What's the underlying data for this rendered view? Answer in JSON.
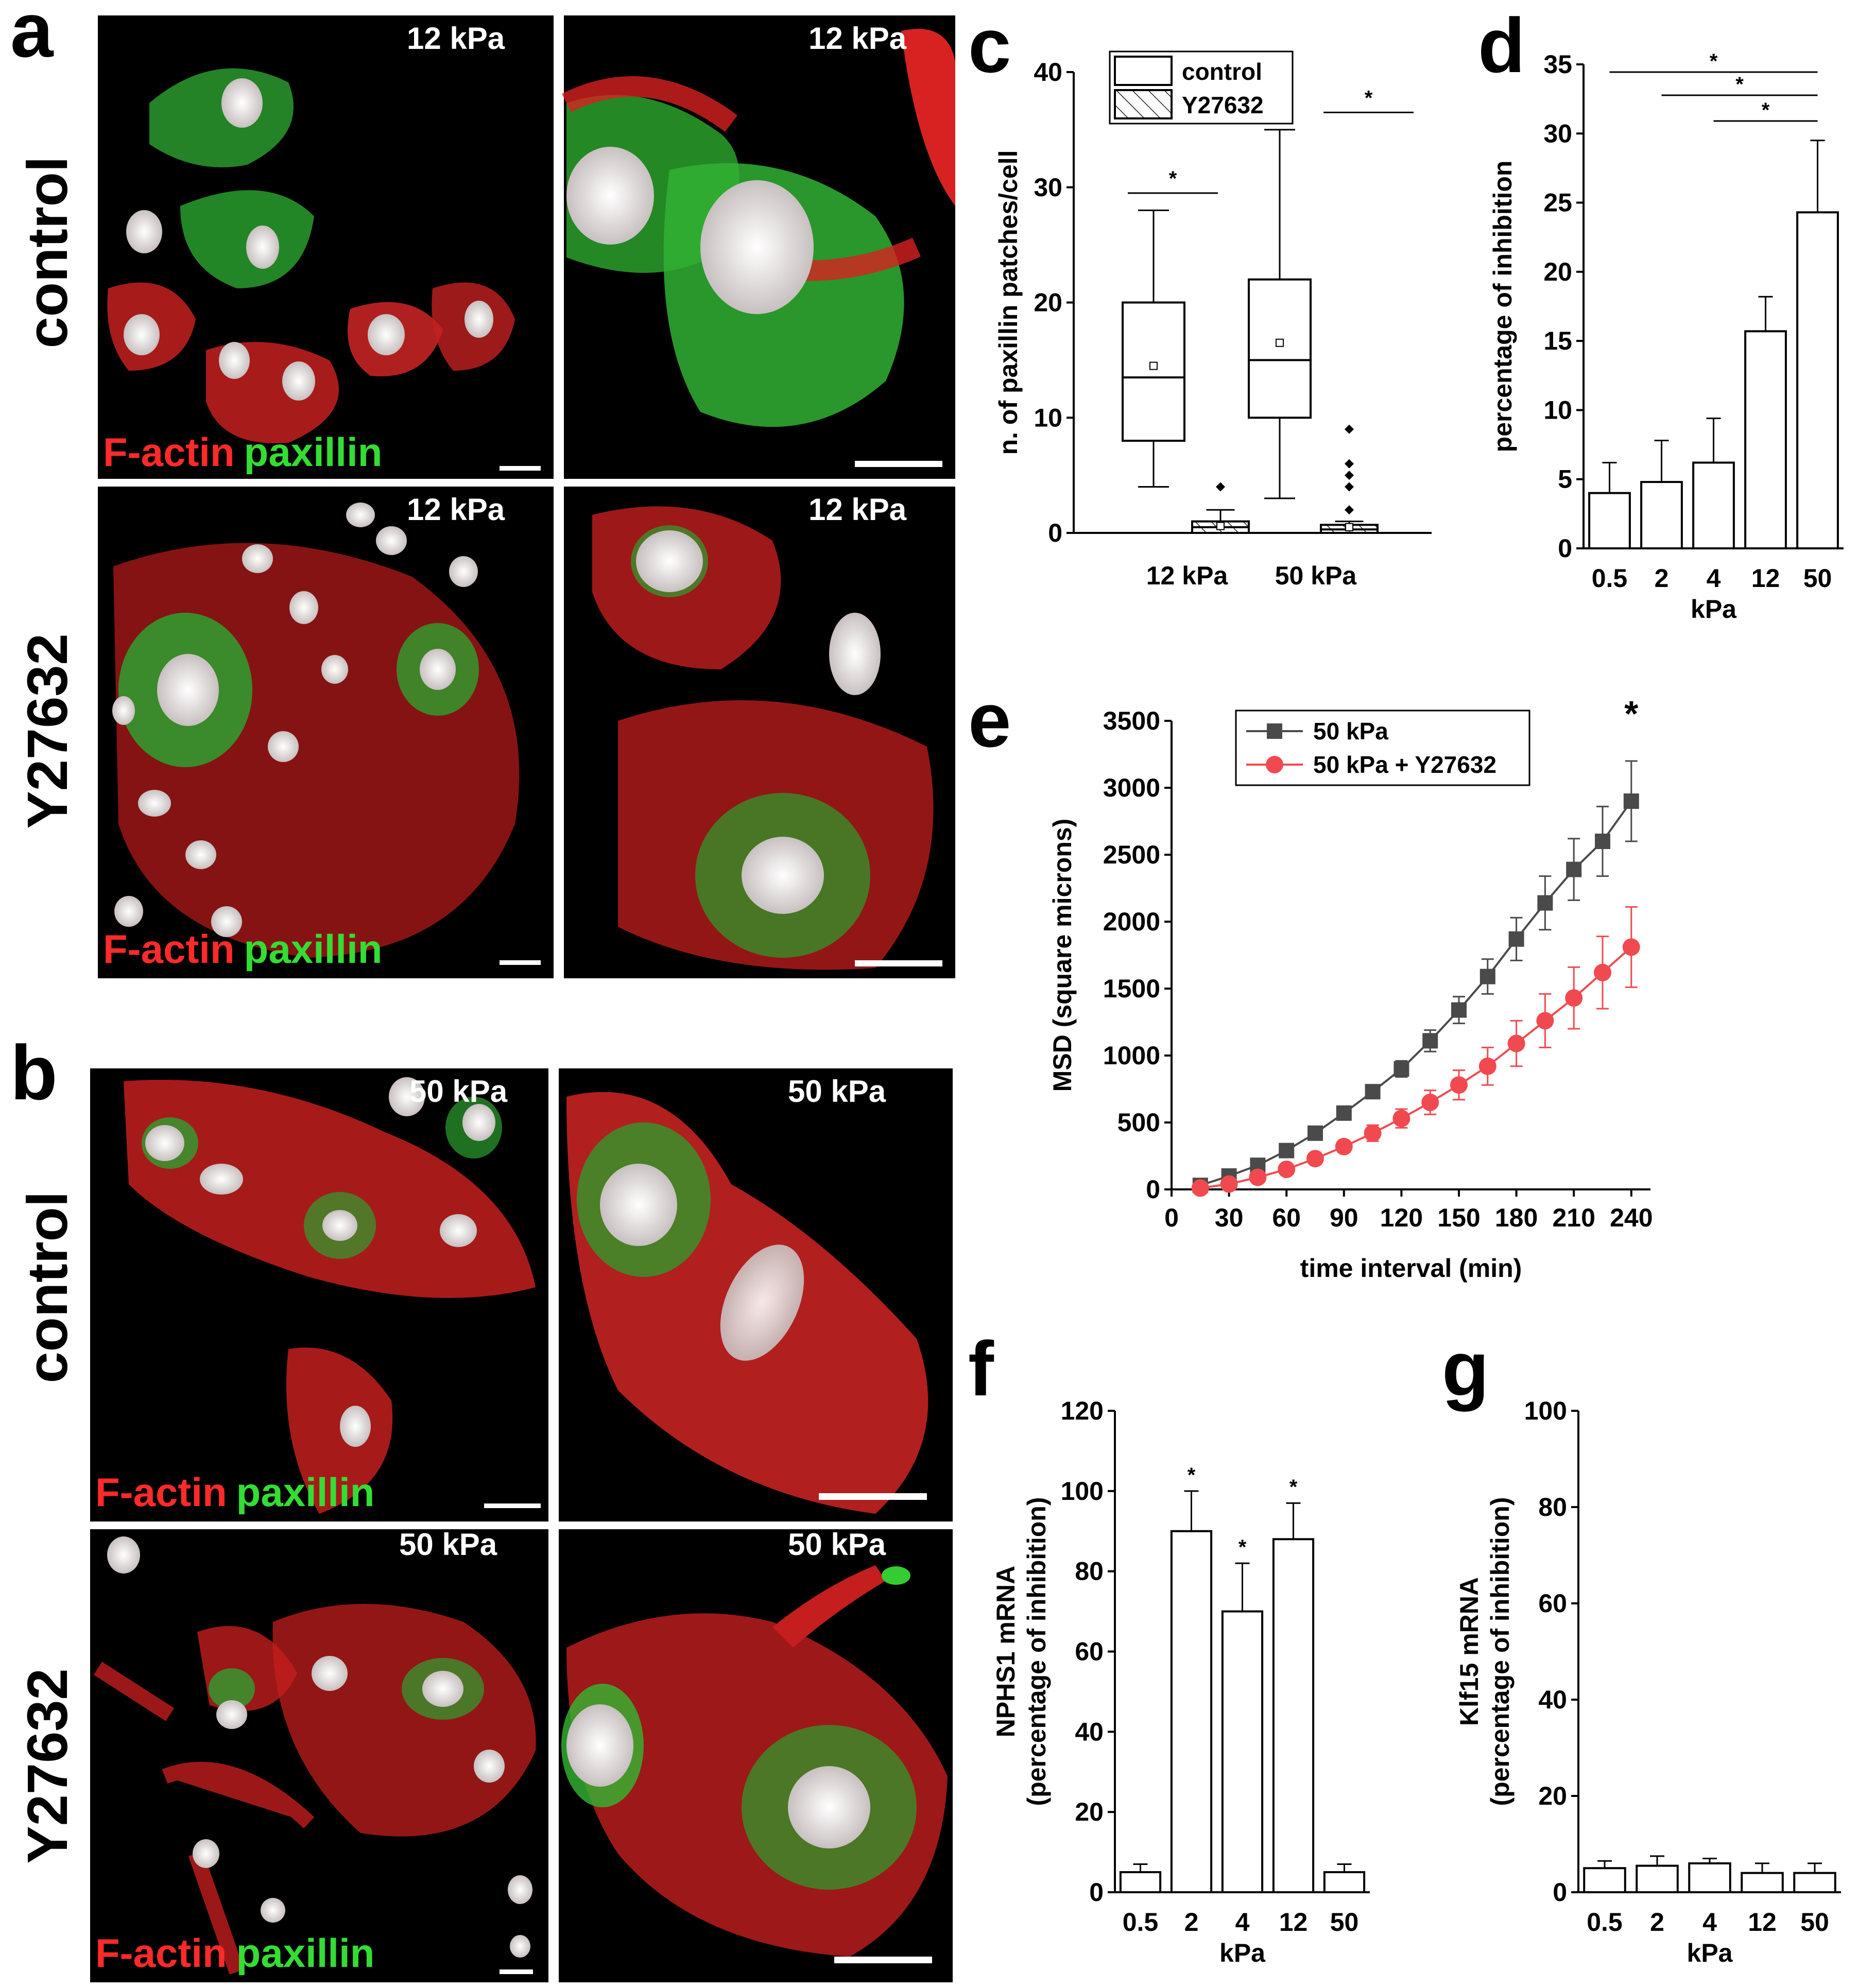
{
  "panel_letters": {
    "a": "a",
    "b": "b",
    "c": "c",
    "d": "d",
    "e": "e",
    "f": "f",
    "g": "g"
  },
  "row_labels": {
    "a_top": "control",
    "a_bottom": "Y27632",
    "b_top": "control",
    "b_bottom": "Y27632"
  },
  "micrographs": {
    "a_top_left_kpa": "12 kPa",
    "a_top_right_kpa": "12 kPa",
    "a_bottom_left_kpa": "12 kPa",
    "a_bottom_right_kpa": "12 kPa",
    "b_top_left_kpa": "50 kPa",
    "b_top_right_kpa": "50 kPa",
    "b_bottom_left_kpa": "50 kPa",
    "b_bottom_right_kpa": "50 kPa",
    "stain_actin": "F-actin",
    "stain_paxillin": "paxillin",
    "colors": {
      "actin": "#e8241c",
      "paxillin": "#2ec832",
      "nucleus": "#e8e0e0",
      "background": "#000000"
    }
  },
  "chart_data": [
    {
      "id": "c",
      "type": "box",
      "ylabel": "n. of paxillin patches/cell",
      "ylim": [
        0,
        40
      ],
      "yticks": [
        0,
        10,
        20,
        30,
        40
      ],
      "categories": [
        "12 kPa",
        "50 kPa"
      ],
      "legend": [
        "control",
        "Y27632"
      ],
      "legend_position": "top",
      "groups": [
        {
          "category": "12 kPa",
          "series": "control",
          "whisker_low": 4,
          "q1": 8,
          "median": 13.5,
          "q3": 20,
          "whisker_high": 28,
          "mean": 14.5,
          "outliers": []
        },
        {
          "category": "12 kPa",
          "series": "Y27632",
          "whisker_low": 0,
          "q1": 0,
          "median": 0.5,
          "q3": 1,
          "whisker_high": 2,
          "mean": 0.6,
          "outliers": [
            4
          ]
        },
        {
          "category": "50 kPa",
          "series": "control",
          "whisker_low": 3,
          "q1": 10,
          "median": 15,
          "q3": 22,
          "whisker_high": 35,
          "mean": 16.5,
          "outliers": []
        },
        {
          "category": "50 kPa",
          "series": "Y27632",
          "whisker_low": 0,
          "q1": 0,
          "median": 0.3,
          "q3": 0.7,
          "whisker_high": 1,
          "mean": 0.5,
          "outliers": [
            2,
            4,
            5,
            6,
            9
          ]
        }
      ],
      "significance": [
        {
          "label": "*",
          "y": 29.5
        },
        {
          "label": "*",
          "y": 36.5
        }
      ]
    },
    {
      "id": "d",
      "type": "bar",
      "xlabel": "kPa",
      "ylabel": "percentage of inhibition",
      "ylim": [
        0,
        35
      ],
      "yticks": [
        0,
        5,
        10,
        15,
        20,
        25,
        30,
        35
      ],
      "categories": [
        "0.5",
        "2",
        "4",
        "12",
        "50"
      ],
      "values": [
        4,
        4.8,
        6.2,
        15.7,
        24.3
      ],
      "errors": [
        2.2,
        3,
        3.2,
        2.5,
        5.2
      ],
      "significance": [
        {
          "label": "*",
          "from": "0.5",
          "to": "50"
        },
        {
          "label": "*",
          "from": "2",
          "to": "50"
        },
        {
          "label": "*",
          "from": "4",
          "to": "50"
        }
      ]
    },
    {
      "id": "e",
      "type": "line",
      "xlabel": "time interval (min)",
      "ylabel": "MSD (square microns)",
      "xlim": [
        0,
        250
      ],
      "ylim": [
        0,
        3500
      ],
      "xticks": [
        0,
        30,
        60,
        90,
        120,
        150,
        180,
        210,
        240
      ],
      "yticks": [
        0,
        500,
        1000,
        1500,
        2000,
        2500,
        3000,
        3500
      ],
      "legend_position": "top-left",
      "x": [
        15,
        30,
        45,
        60,
        75,
        90,
        105,
        120,
        135,
        150,
        165,
        180,
        195,
        210,
        225,
        240
      ],
      "series": [
        {
          "name": "50 kPa",
          "color": "#4a4a4a",
          "marker": "square",
          "values": [
            30,
            100,
            180,
            290,
            420,
            570,
            730,
            900,
            1110,
            1340,
            1590,
            1870,
            2140,
            2390,
            2600,
            2900
          ],
          "errors": [
            10,
            15,
            20,
            25,
            35,
            40,
            50,
            60,
            80,
            100,
            130,
            160,
            200,
            230,
            260,
            300
          ]
        },
        {
          "name": "50 kPa + Y27632",
          "color": "#f04a50",
          "marker": "circle",
          "values": [
            10,
            40,
            90,
            150,
            230,
            320,
            420,
            530,
            650,
            780,
            920,
            1090,
            1260,
            1430,
            1620,
            1810
          ],
          "errors": [
            8,
            12,
            18,
            25,
            35,
            45,
            60,
            70,
            90,
            110,
            140,
            170,
            200,
            230,
            270,
            300
          ]
        }
      ],
      "annotations": [
        {
          "x": 240,
          "label": "*"
        }
      ]
    },
    {
      "id": "f",
      "type": "bar",
      "xlabel": "kPa",
      "ylabel": "NPHS1 mRNA",
      "ylabel2": "(percentage of inhibition)",
      "ylim": [
        0,
        120
      ],
      "yticks": [
        0,
        20,
        40,
        60,
        80,
        100,
        120
      ],
      "categories": [
        "0.5",
        "2",
        "4",
        "12",
        "50"
      ],
      "values": [
        5,
        90,
        70,
        88,
        5
      ],
      "errors": [
        2,
        10,
        12,
        9,
        2
      ],
      "significant": [
        false,
        true,
        true,
        true,
        false
      ]
    },
    {
      "id": "g",
      "type": "bar",
      "xlabel": "kPa",
      "ylabel": "Klf15 mRNA",
      "ylabel2": "(percentage of inhibition)",
      "ylim": [
        0,
        100
      ],
      "yticks": [
        0,
        20,
        40,
        60,
        80,
        100
      ],
      "categories": [
        "0.5",
        "2",
        "4",
        "12",
        "50"
      ],
      "values": [
        5,
        5.5,
        6,
        4,
        4
      ],
      "errors": [
        1.5,
        2,
        1,
        2,
        2
      ]
    }
  ]
}
